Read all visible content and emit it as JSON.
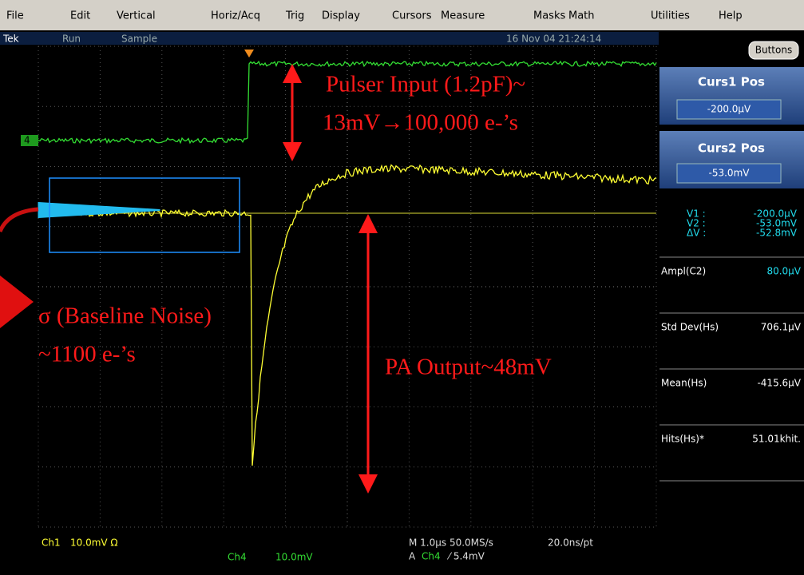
{
  "menu": [
    "File",
    "Edit",
    "Vertical",
    "Horiz/Acq",
    "Trig",
    "Display",
    "Cursors",
    "Measure",
    "Masks",
    "Math",
    "Utilities",
    "Help"
  ],
  "status": {
    "brand": "Tek",
    "mode": "Run",
    "acquisition": "Sample",
    "datetime": "16 Nov 04 21:24:14"
  },
  "side_panel": {
    "button": "Buttons",
    "cursor1": {
      "label": "Curs1 Pos",
      "value": "-200.0µV"
    },
    "cursor2": {
      "label": "Curs2 Pos",
      "value": "-53.0mV"
    },
    "readout": [
      [
        "V1 :",
        "-200.0µV"
      ],
      [
        "V2 :",
        "-53.0mV"
      ],
      [
        "ΔV :",
        "-52.8mV"
      ]
    ],
    "measurements": [
      [
        "Ampl(C2)",
        "80.0µV"
      ],
      [
        "Std Dev(Hs)",
        "706.1µV"
      ],
      [
        "Mean(Hs)",
        "-415.6µV"
      ],
      [
        "Hits(Hs)*",
        "51.01khit."
      ]
    ]
  },
  "channel_marker": "4",
  "footer": {
    "ch1": "Ch1",
    "ch1_scale": "10.0mV Ω",
    "ch4": "Ch4",
    "ch4_scale": "10.0mV",
    "timebase": "M 1.0µs 50.0MS/s",
    "resolution": "20.0ns/pt",
    "trigger_source_prefix": "A",
    "trigger_channel": "Ch4",
    "trigger_level": "⁄ 5.4mV"
  },
  "annotations": {
    "pulser_line1": "Pulser Input (1.2pF)~",
    "pulser_line2": "13mV→100,000 e-’s",
    "noise_line1": "σ (Baseline Noise)",
    "noise_line2": "~1100 e-’s",
    "output": "PA Output~48mV"
  }
}
